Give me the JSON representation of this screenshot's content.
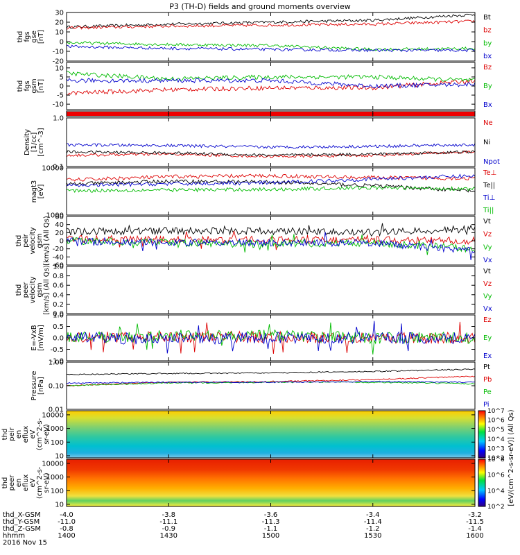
{
  "title": "P3 (TH-D) fields and ground moments overview",
  "footer": {
    "rows": [
      {
        "label": "thd_X-GSM",
        "values": [
          "-4.0",
          "-3.8",
          "-3.6",
          "-3.4",
          "-3.2"
        ]
      },
      {
        "label": "thd_Y-GSM",
        "values": [
          "-11.0",
          "-11.1",
          "-11.3",
          "-11.4",
          "-11.5"
        ]
      },
      {
        "label": "thd_Z-GSM",
        "values": [
          "-0.8",
          "-0.9",
          "-1.1",
          "-1.2",
          "-1.4"
        ]
      },
      {
        "label": "hhmm",
        "values": [
          "1400",
          "1430",
          "1500",
          "1530",
          "1600"
        ]
      }
    ],
    "date": "2016 Nov 15"
  },
  "colorbar": {
    "label": "[eV/(cm^2-s-sr-eV)] (All Qs)",
    "ion_ticks": [
      "10^2",
      "10^3",
      "10^4",
      "10^5",
      "10^6",
      "10^7"
    ],
    "elec_ticks": [
      "10^2",
      "10^4",
      "10^6",
      "10^8"
    ]
  },
  "panels": [
    {
      "id": "fgs-gse",
      "ylabel": [
        "thd",
        "fgs",
        "gse",
        "[nT]"
      ],
      "ticks": [
        "30",
        "20",
        "10",
        "0",
        "-10",
        "-20"
      ],
      "legend": [
        {
          "t": "Bt",
          "c": "#000000"
        },
        {
          "t": "bz",
          "c": "#dd0000"
        },
        {
          "t": "by",
          "c": "#00bb00"
        },
        {
          "t": "bx",
          "c": "#0000cc"
        }
      ]
    },
    {
      "id": "fgs-gsm",
      "ylabel": [
        "thd",
        "fgs",
        "gsm",
        "[nT]"
      ],
      "ticks": [
        "10",
        "5",
        "0",
        "-5",
        "-10"
      ],
      "legend": [
        {
          "t": "Bz",
          "c": "#dd0000"
        },
        {
          "t": "By",
          "c": "#00bb00"
        },
        {
          "t": "Bx",
          "c": "#0000cc"
        }
      ]
    },
    {
      "id": "flag",
      "ylabel": [],
      "ticks": [],
      "legend": []
    },
    {
      "id": "density",
      "ylabel": [
        "Density",
        "[1/cc]",
        "[cm^-3]"
      ],
      "ticks": [
        "1.0",
        "0.1"
      ],
      "legend": [
        {
          "t": "Ne",
          "c": "#dd0000"
        },
        {
          "t": "Ni",
          "c": "#000000"
        },
        {
          "t": "Npot",
          "c": "#0000cc"
        }
      ]
    },
    {
      "id": "temp",
      "ylabel": [
        "magt3",
        "[eV]"
      ],
      "ticks": [
        "10000",
        "1000"
      ],
      "legend": [
        {
          "t": "Te⊥",
          "c": "#dd0000"
        },
        {
          "t": "Te||",
          "c": "#000000"
        },
        {
          "t": "Ti⊥",
          "c": "#0000cc"
        },
        {
          "t": "Ti||",
          "c": "#00bb00"
        }
      ]
    },
    {
      "id": "peir-vel",
      "ylabel": [
        "thd",
        "peir",
        "velocity",
        "gsm",
        "[km/s] (All Qs)"
      ],
      "ticks": [
        "60",
        "40",
        "20",
        "0",
        "-20",
        "-40",
        "-60"
      ],
      "legend": [
        {
          "t": "Vt",
          "c": "#000000"
        },
        {
          "t": "Vz",
          "c": "#dd0000"
        },
        {
          "t": "Vy",
          "c": "#00bb00"
        },
        {
          "t": "Vx",
          "c": "#0000cc"
        }
      ]
    },
    {
      "id": "peer-vel",
      "ylabel": [
        "thd",
        "peer",
        "velocity",
        "gsm",
        "[km/s] (All Qs)"
      ],
      "ticks": [
        "1.0",
        "0.8",
        "0.6",
        "0.4",
        "0.2",
        "0.0"
      ],
      "legend": [
        {
          "t": "Vt",
          "c": "#000000"
        },
        {
          "t": "Vz",
          "c": "#dd0000"
        },
        {
          "t": "Vy",
          "c": "#00bb00"
        },
        {
          "t": "Vx",
          "c": "#0000cc"
        }
      ]
    },
    {
      "id": "efield",
      "ylabel": [
        "E=-VxB",
        "[mV/m]"
      ],
      "ticks": [
        "1.0",
        "0.5",
        "0.0",
        "-0.5",
        "-1.0"
      ],
      "legend": [
        {
          "t": "Ez",
          "c": "#dd0000"
        },
        {
          "t": "Ey",
          "c": "#00bb00"
        },
        {
          "t": "Ex",
          "c": "#0000cc"
        }
      ]
    },
    {
      "id": "pressure",
      "ylabel": [
        "Pressure",
        "[nPa]"
      ],
      "ticks": [
        "1.00",
        "0.10",
        "0.01"
      ],
      "legend": [
        {
          "t": "Pt",
          "c": "#000000"
        },
        {
          "t": "Pb",
          "c": "#dd0000"
        },
        {
          "t": "Pe",
          "c": "#00bb00"
        },
        {
          "t": "Pi",
          "c": "#0000cc"
        }
      ]
    },
    {
      "id": "peir-spec",
      "ylabel": [
        "thd",
        "peir",
        "en",
        "eflux",
        "eV",
        "(cm^2-s-",
        "sr-eV)"
      ],
      "ticks": [
        "10000",
        "1000",
        "100",
        "10"
      ],
      "legend": []
    },
    {
      "id": "peer-spec",
      "ylabel": [
        "thd",
        "peer",
        "en",
        "eflux",
        "eV",
        "(cm^2-s-",
        "sr-eV)"
      ],
      "ticks": [
        "10000",
        "1000",
        "100",
        "10"
      ],
      "legend": []
    }
  ],
  "chart_data": [
    {
      "type": "line",
      "title": "P3 (TH-D) fields and ground moments overview",
      "xlabel": "hhmm",
      "x": [
        "1400",
        "1430",
        "1500",
        "1530",
        "1600"
      ],
      "ylabel": "thd fgs gse [nT]",
      "ylim": [
        -20,
        30
      ],
      "series": [
        {
          "name": "Bt",
          "values": [
            15,
            18,
            20,
            22,
            28
          ]
        },
        {
          "name": "bz",
          "values": [
            14,
            16,
            17,
            18,
            21
          ]
        },
        {
          "name": "by",
          "values": [
            -1,
            -3,
            -4,
            -8,
            -7
          ]
        },
        {
          "name": "bx",
          "values": [
            -5,
            -7,
            -8,
            -9,
            -9
          ]
        }
      ]
    },
    {
      "type": "line",
      "xlabel": "hhmm",
      "x": [
        "1400",
        "1430",
        "1500",
        "1530",
        "1600"
      ],
      "ylabel": "thd fgs gsm [nT]",
      "ylim": [
        -13,
        13
      ],
      "series": [
        {
          "name": "Bz",
          "values": [
            -4,
            -2,
            -1,
            -1,
            3
          ]
        },
        {
          "name": "By",
          "values": [
            7,
            4,
            5,
            5,
            3
          ]
        },
        {
          "name": "Bx",
          "values": [
            3,
            3,
            3,
            0,
            1
          ]
        }
      ]
    },
    {
      "type": "line",
      "xlabel": "hhmm",
      "x": [
        "1400",
        "1430",
        "1500",
        "1530",
        "1600"
      ],
      "ylabel": "Density [1/cc] [cm^-3]",
      "ylim": [
        0.1,
        1.0
      ],
      "series": [
        {
          "name": "Ne",
          "values": [
            0.17,
            0.18,
            0.16,
            0.17,
            0.2
          ]
        },
        {
          "name": "Ni",
          "values": [
            0.2,
            0.19,
            0.17,
            0.18,
            0.2
          ]
        },
        {
          "name": "Npot",
          "values": [
            0.28,
            0.27,
            0.25,
            0.26,
            0.28
          ]
        }
      ]
    },
    {
      "type": "line",
      "xlabel": "hhmm",
      "x": [
        "1400",
        "1430",
        "1500",
        "1530",
        "1600"
      ],
      "ylabel": "magt3 [eV]",
      "ylim": [
        1000,
        10000
      ],
      "series": [
        {
          "name": "Te⊥",
          "values": [
            5500,
            6500,
            6800,
            6200,
            6000
          ]
        },
        {
          "name": "Te||",
          "values": [
            4500,
            5200,
            5000,
            4200,
            3200
          ]
        },
        {
          "name": "Ti⊥",
          "values": [
            4200,
            4600,
            4800,
            5800,
            6800
          ]
        },
        {
          "name": "Ti||",
          "values": [
            3300,
            3400,
            3500,
            3800,
            3600
          ]
        }
      ]
    },
    {
      "type": "line",
      "xlabel": "hhmm",
      "x": [
        "1400",
        "1430",
        "1500",
        "1530",
        "1600"
      ],
      "ylabel": "thd peir velocity gsm [km/s] (All Qs)",
      "ylim": [
        -60,
        60
      ],
      "series": [
        {
          "name": "Vt",
          "values": [
            22,
            25,
            24,
            20,
            30
          ]
        },
        {
          "name": "Vz",
          "values": [
            5,
            2,
            3,
            2,
            0
          ]
        },
        {
          "name": "Vy",
          "values": [
            0,
            -5,
            -8,
            -5,
            -20
          ]
        },
        {
          "name": "Vx",
          "values": [
            0,
            -5,
            -5,
            -5,
            -25
          ]
        }
      ]
    },
    {
      "type": "line",
      "xlabel": "hhmm",
      "x": [
        "1400",
        "1430",
        "1500",
        "1530",
        "1600"
      ],
      "ylabel": "thd peer velocity gsm [km/s] (All Qs)",
      "ylim": [
        0,
        1
      ],
      "series": []
    },
    {
      "type": "line",
      "xlabel": "hhmm",
      "x": [
        "1400",
        "1430",
        "1500",
        "1530",
        "1600"
      ],
      "ylabel": "E=-VxB [mV/m]",
      "ylim": [
        -1,
        1
      ],
      "series": [
        {
          "name": "Ez",
          "values": [
            0.0,
            0.05,
            0.05,
            0.0,
            0.0
          ]
        },
        {
          "name": "Ey",
          "values": [
            0.0,
            0.1,
            0.1,
            0.0,
            0.0
          ]
        },
        {
          "name": "Ex",
          "values": [
            0.0,
            -0.05,
            0.0,
            0.0,
            0.0
          ]
        }
      ]
    },
    {
      "type": "line",
      "xlabel": "hhmm",
      "x": [
        "1400",
        "1430",
        "1500",
        "1530",
        "1600"
      ],
      "ylabel": "Pressure [nPa]",
      "ylim": [
        0.01,
        1.0
      ],
      "series": [
        {
          "name": "Pt",
          "values": [
            0.3,
            0.33,
            0.35,
            0.4,
            0.5
          ]
        },
        {
          "name": "Pb",
          "values": [
            0.1,
            0.14,
            0.15,
            0.18,
            0.25
          ]
        },
        {
          "name": "Pe",
          "values": [
            0.1,
            0.13,
            0.14,
            0.14,
            0.12
          ]
        },
        {
          "name": "Pi",
          "values": [
            0.13,
            0.14,
            0.14,
            0.15,
            0.14
          ]
        }
      ]
    },
    {
      "type": "heatmap",
      "xlabel": "hhmm",
      "x": [
        "1400",
        "1430",
        "1500",
        "1530",
        "1600"
      ],
      "ylabel": "thd peir en eflux eV (cm^2-s-sr-eV)",
      "ylim": [
        7,
        20000
      ]
    },
    {
      "type": "heatmap",
      "xlabel": "hhmm",
      "x": [
        "1400",
        "1430",
        "1500",
        "1530",
        "1600"
      ],
      "ylabel": "thd peer en eflux eV (cm^2-s-sr-eV)",
      "ylim": [
        7,
        20000
      ]
    }
  ]
}
